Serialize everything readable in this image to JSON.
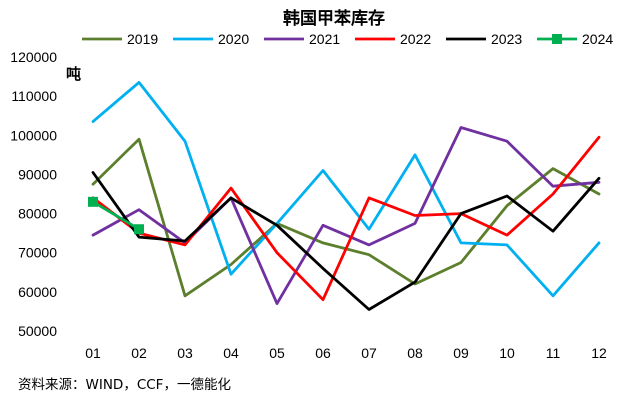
{
  "chart_data": {
    "type": "line",
    "title": "韩国甲苯库存",
    "ylabel": "吨",
    "source": "资料来源：WIND，CCF，一德能化",
    "categories": [
      "01",
      "02",
      "03",
      "04",
      "05",
      "06",
      "07",
      "08",
      "09",
      "10",
      "11",
      "12"
    ],
    "ylim": [
      50000,
      120000
    ],
    "yticks": [
      50000,
      60000,
      70000,
      80000,
      90000,
      100000,
      110000,
      120000
    ],
    "grid": false,
    "legend_position": "top",
    "series": [
      {
        "name": "2019",
        "color": "#5B7F2C",
        "marker": "none",
        "values": [
          87500,
          99000,
          59000,
          67000,
          77500,
          72500,
          69500,
          62000,
          67500,
          82000,
          91500,
          85000
        ]
      },
      {
        "name": "2020",
        "color": "#00B0F0",
        "marker": "none",
        "values": [
          103500,
          113500,
          98500,
          64500,
          77500,
          91000,
          76000,
          95000,
          72500,
          72000,
          59000,
          72500
        ]
      },
      {
        "name": "2021",
        "color": "#7030A0",
        "marker": "none",
        "values": [
          74500,
          81000,
          72500,
          84000,
          57000,
          77000,
          72000,
          77500,
          102000,
          98500,
          87000,
          88000
        ]
      },
      {
        "name": "2022",
        "color": "#FF0000",
        "marker": "none",
        "values": [
          84000,
          75000,
          72000,
          86500,
          70000,
          58000,
          84000,
          79500,
          80000,
          74500,
          85000,
          99500
        ]
      },
      {
        "name": "2023",
        "color": "#000000",
        "marker": "none",
        "values": [
          90500,
          74000,
          73000,
          84000,
          77000,
          66000,
          55500,
          62500,
          80000,
          84500,
          75500,
          89000
        ]
      },
      {
        "name": "2024",
        "color": "#00B050",
        "marker": "square",
        "values": [
          83000,
          76000,
          null,
          null,
          null,
          null,
          null,
          null,
          null,
          null,
          null,
          null
        ]
      }
    ]
  }
}
